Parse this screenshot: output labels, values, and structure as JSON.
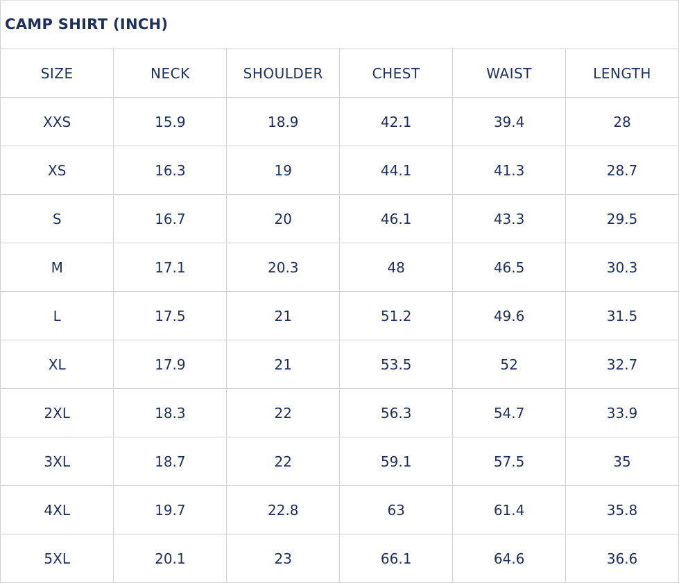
{
  "title": "CAMP SHIRT (INCH)",
  "columns": [
    "SIZE",
    "NECK",
    "SHOULDER",
    "CHEST",
    "WAIST",
    "LENGTH"
  ],
  "rows": [
    [
      "XXS",
      "15.9",
      "18.9",
      "42.1",
      "39.4",
      "28"
    ],
    [
      "XS",
      "16.3",
      "19",
      "44.1",
      "41.3",
      "28.7"
    ],
    [
      "S",
      "16.7",
      "20",
      "46.1",
      "43.3",
      "29.5"
    ],
    [
      "M",
      "17.1",
      "20.3",
      "48",
      "46.5",
      "30.3"
    ],
    [
      "L",
      "17.5",
      "21",
      "51.2",
      "49.6",
      "31.5"
    ],
    [
      "XL",
      "17.9",
      "21",
      "53.5",
      "52",
      "32.7"
    ],
    [
      "2XL",
      "18.3",
      "22",
      "56.3",
      "54.7",
      "33.9"
    ],
    [
      "3XL",
      "18.7",
      "22",
      "59.1",
      "57.5",
      "35"
    ],
    [
      "4XL",
      "19.7",
      "22.8",
      "63",
      "61.4",
      "35.8"
    ],
    [
      "5XL",
      "20.1",
      "23",
      "66.1",
      "64.6",
      "36.6"
    ]
  ],
  "colors": {
    "text": "#1c2f5e",
    "border": "#d0d0d0"
  }
}
